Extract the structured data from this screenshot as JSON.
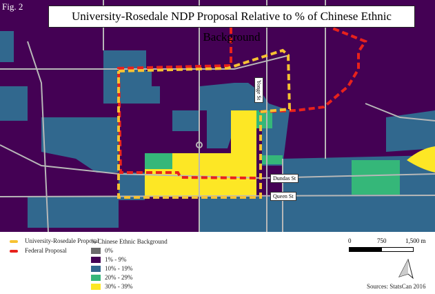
{
  "figure_label": "Fig. 2",
  "title": "University-Rosedale NDP Proposal Relative to % of Chinese Ethnic Background",
  "streets": {
    "yonge": "Yonge St",
    "dundas": "Dundas St",
    "queen": "Queen St"
  },
  "legend": {
    "proposals": [
      {
        "label": "University-Rosedale Proposal",
        "color": "#f7c232"
      },
      {
        "label": "Federal Proposal",
        "color": "#e8221c"
      }
    ],
    "choropleth_title": "% Chinese Ethnic Background",
    "classes": [
      {
        "label": "0%",
        "color": "#6b6b6b"
      },
      {
        "label": "1% - 9%",
        "color": "#440154"
      },
      {
        "label": "10% - 19%",
        "color": "#31688e"
      },
      {
        "label": "20% - 29%",
        "color": "#35b779"
      },
      {
        "label": "30% - 39%",
        "color": "#fde725"
      }
    ]
  },
  "scale_bar": {
    "ticks": [
      "0",
      "750",
      "1,500 m"
    ]
  },
  "north_arrow": "north-arrow-icon",
  "source": "Sources: StatsCan 2016"
}
